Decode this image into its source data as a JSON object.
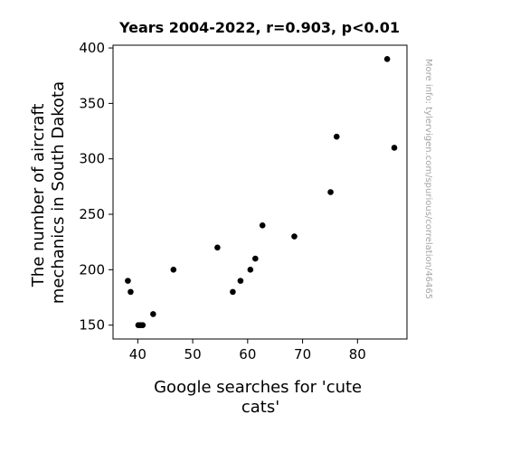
{
  "chart_data": {
    "type": "scatter",
    "title": "Years 2004-2022, r=0.903, p<0.01",
    "xlabel_lines": [
      "Google searches for 'cute",
      "cats'"
    ],
    "ylabel_lines": [
      "The number of aircraft",
      "mechanics in South Dakota"
    ],
    "xlim": [
      35.5,
      89
    ],
    "ylim": [
      137.5,
      402.5
    ],
    "xticks": [
      40,
      50,
      60,
      70,
      80
    ],
    "yticks": [
      150,
      200,
      250,
      300,
      350,
      400
    ],
    "grid": false,
    "points": [
      {
        "x": 38.2,
        "y": 190
      },
      {
        "x": 38.7,
        "y": 180
      },
      {
        "x": 40.1,
        "y": 150
      },
      {
        "x": 40.5,
        "y": 150
      },
      {
        "x": 40.9,
        "y": 150
      },
      {
        "x": 42.8,
        "y": 160
      },
      {
        "x": 46.5,
        "y": 200
      },
      {
        "x": 54.5,
        "y": 220
      },
      {
        "x": 57.3,
        "y": 180
      },
      {
        "x": 58.7,
        "y": 190
      },
      {
        "x": 60.5,
        "y": 200
      },
      {
        "x": 61.4,
        "y": 210
      },
      {
        "x": 62.7,
        "y": 240
      },
      {
        "x": 68.5,
        "y": 230
      },
      {
        "x": 75.1,
        "y": 270
      },
      {
        "x": 76.2,
        "y": 320
      },
      {
        "x": 85.4,
        "y": 390
      },
      {
        "x": 86.7,
        "y": 310
      }
    ],
    "point_color": "#000000"
  },
  "side_note": "More info: tylervigen.com/spurious/correlation/46465"
}
